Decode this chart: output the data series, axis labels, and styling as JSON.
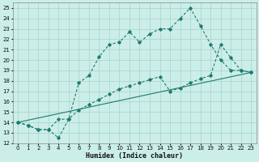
{
  "xlabel": "Humidex (Indice chaleur)",
  "bg_color": "#cceee8",
  "line_color": "#1e7a6e",
  "grid_color": "#aad8d0",
  "xlim": [
    -0.5,
    23.5
  ],
  "ylim": [
    12,
    25.5
  ],
  "yticks": [
    12,
    13,
    14,
    15,
    16,
    17,
    18,
    19,
    20,
    21,
    22,
    23,
    24,
    25
  ],
  "xticks": [
    0,
    1,
    2,
    3,
    4,
    5,
    6,
    7,
    8,
    9,
    10,
    11,
    12,
    13,
    14,
    15,
    16,
    17,
    18,
    19,
    20,
    21,
    22,
    23
  ],
  "line1_x": [
    0,
    1,
    2,
    3,
    4,
    5,
    6,
    7,
    8,
    9,
    10,
    11,
    12,
    13,
    14,
    15,
    16,
    17,
    18,
    19,
    20,
    21,
    22,
    23
  ],
  "line1_y": [
    14.0,
    13.7,
    13.3,
    13.3,
    12.5,
    14.3,
    17.8,
    18.5,
    20.3,
    21.5,
    21.7,
    22.7,
    21.7,
    22.5,
    23.0,
    23.0,
    24.0,
    25.0,
    23.3,
    21.5,
    20.0,
    19.0,
    19.0,
    18.8
  ],
  "line2_x": [
    0,
    1,
    2,
    3,
    4,
    5,
    6,
    7,
    8,
    9,
    10,
    11,
    12,
    13,
    14,
    15,
    16,
    17,
    18,
    19,
    20,
    21,
    22,
    23
  ],
  "line2_y": [
    14.0,
    13.7,
    13.3,
    13.3,
    14.3,
    14.3,
    15.2,
    15.7,
    16.2,
    16.7,
    17.2,
    17.5,
    17.8,
    18.1,
    18.4,
    17.0,
    17.3,
    17.8,
    18.2,
    18.5,
    21.5,
    20.2,
    19.0,
    18.8
  ],
  "line3_x": [
    0,
    23
  ],
  "line3_y": [
    14.0,
    18.8
  ]
}
